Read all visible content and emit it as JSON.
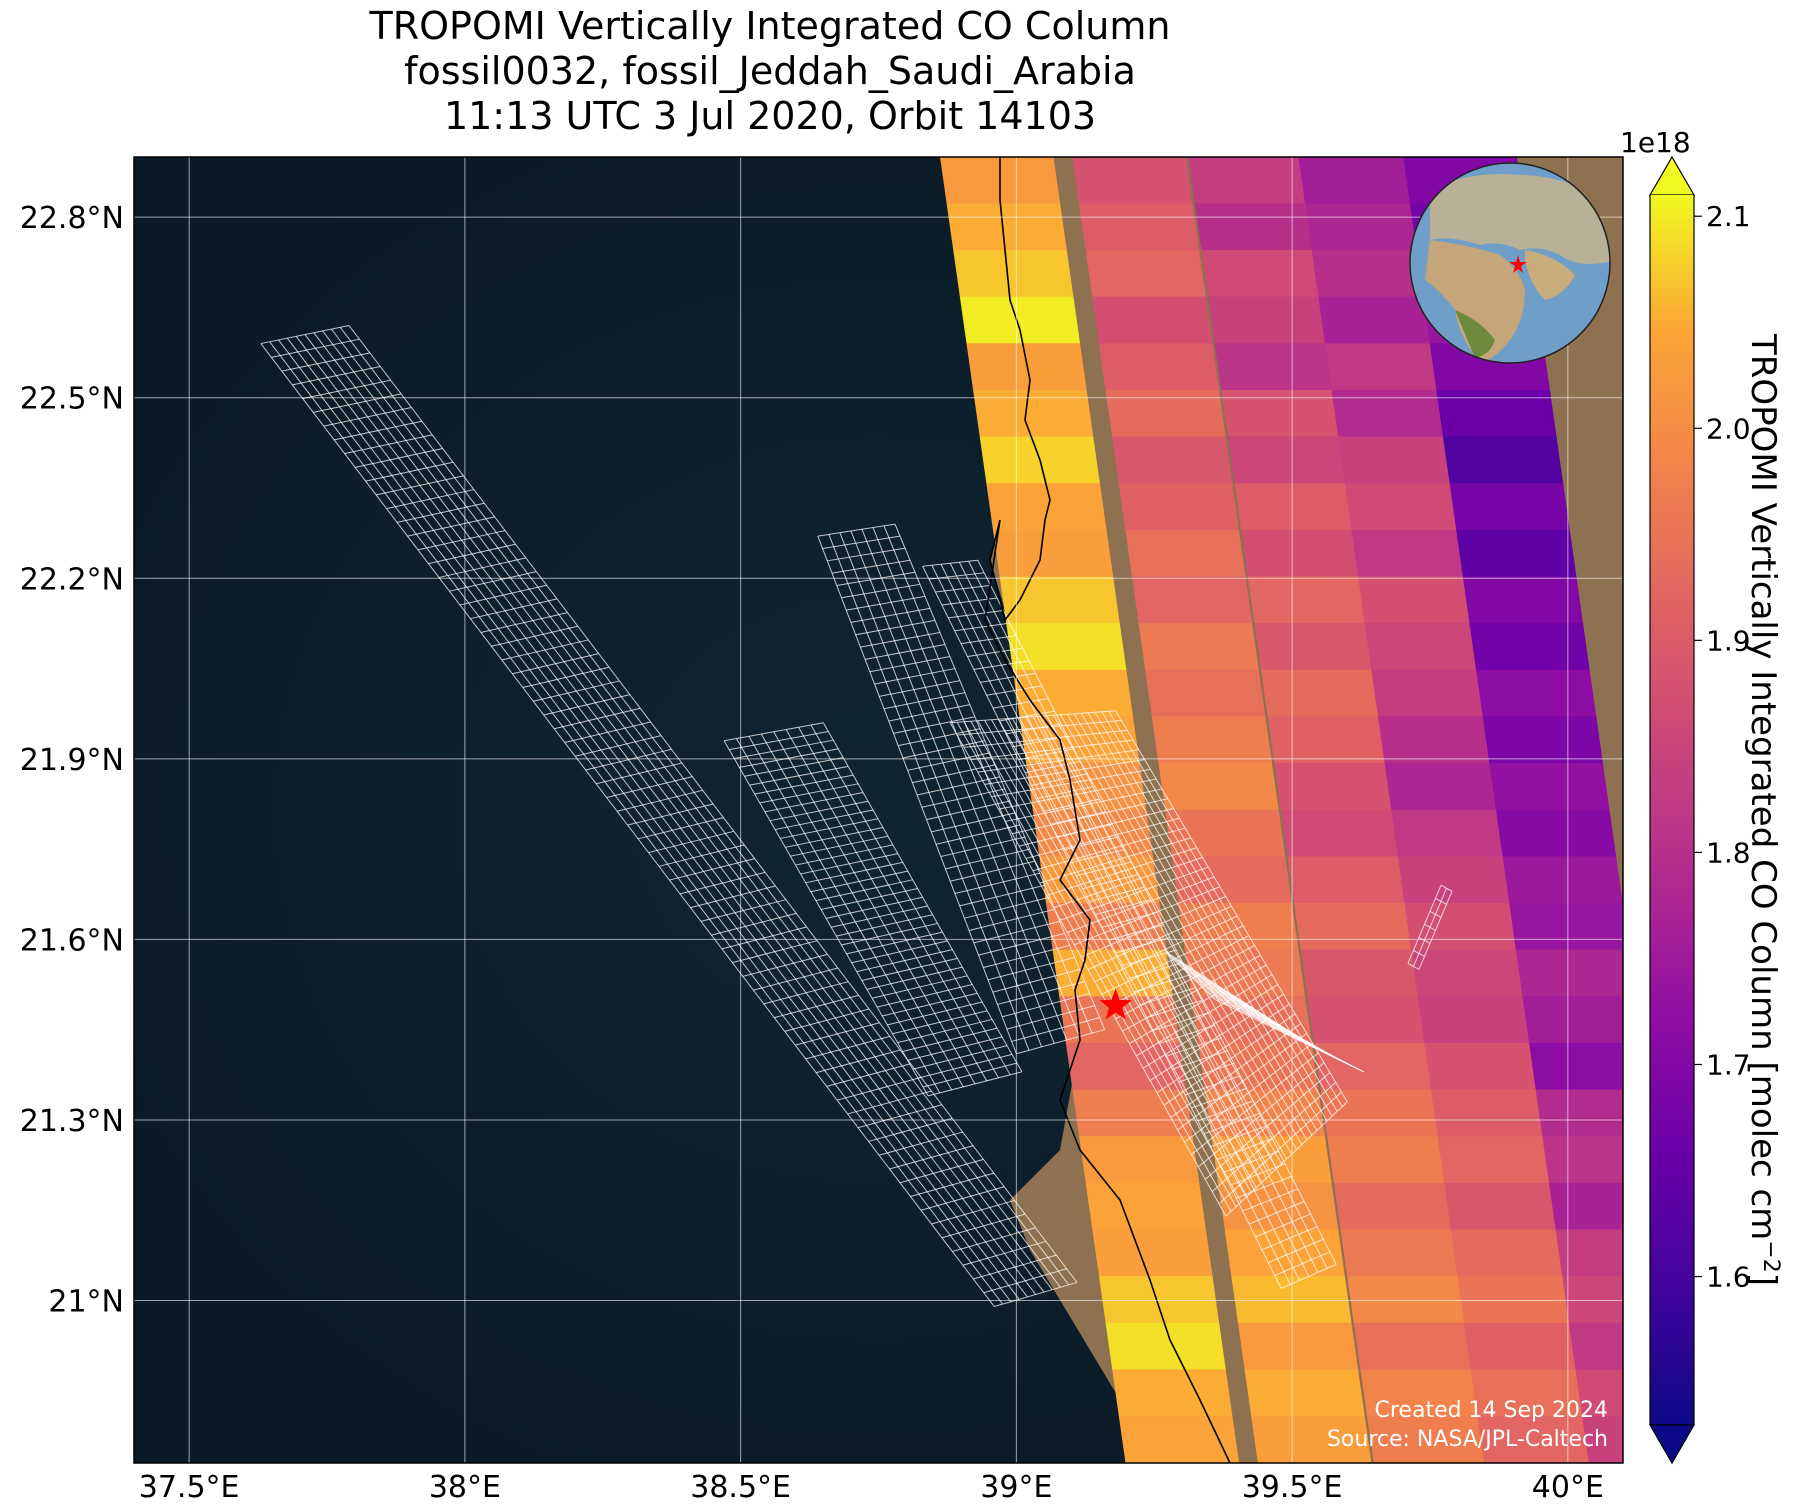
{
  "title": {
    "line1": "TROPOMI Vertically Integrated CO Column",
    "line2": "fossil0032, fossil_Jeddah_Saudi_Arabia",
    "line3": "11:13 UTC 3 Jul 2020, Orbit 14103"
  },
  "map": {
    "lon_range": [
      37.4,
      40.1
    ],
    "lat_range": [
      20.73,
      22.9
    ],
    "lon_ticks": [
      "37.5°E",
      "38°E",
      "38.5°E",
      "39°E",
      "39.5°E",
      "40°E"
    ],
    "lat_ticks": [
      "22.8°N",
      "22.5°N",
      "22.2°N",
      "21.9°N",
      "21.6°N",
      "21.3°N",
      "21°N"
    ],
    "target_site": {
      "lon": 39.18,
      "lat": 21.49
    },
    "credit_line1": "Created 14 Sep 2024",
    "credit_line2": "Source: NASA/JPL-Caltech"
  },
  "colorbar": {
    "label": "TROPOMI Vertically Integrated CO Column [molec cm",
    "label_exponent": "−2",
    "label_close": "]",
    "multiplier": "1e18",
    "ticks": [
      "1.6",
      "1.7",
      "1.8",
      "1.9",
      "2.0",
      "2.1"
    ],
    "vmin": 1.53,
    "vmax": 2.11,
    "colormap": "plasma",
    "extend": "both"
  },
  "chart_data": {
    "type": "heatmap",
    "title": "TROPOMI Vertically Integrated CO Column",
    "subtitle": "fossil0032, fossil_Jeddah_Saudi_Arabia; 11:13 UTC 3 Jul 2020, Orbit 14103",
    "units": "molec cm^-2 (x1e18)",
    "value_range": [
      1.53,
      2.11
    ],
    "swath_columns_lon_at_22_8N": [
      38.98,
      39.22,
      39.43,
      39.63,
      39.82
    ],
    "swath_column_values_north_to_south": [
      [
        2.02,
        2.05,
        2.07,
        2.1,
        2.03,
        2.05,
        2.08,
        2.04,
        2.03,
        2.07,
        2.09,
        2.05,
        2.04,
        2.01,
        1.99,
        2.02,
        1.97,
        2.05,
        1.95,
        1.92,
        1.97,
        2.02,
        2.04,
        2.03,
        2.07,
        2.09,
        2.05,
        2.04
      ],
      [
        1.88,
        1.9,
        1.92,
        1.87,
        1.9,
        1.93,
        1.89,
        1.91,
        1.94,
        1.92,
        1.96,
        1.94,
        1.97,
        1.99,
        1.95,
        1.93,
        1.97,
        1.96,
        1.94,
        1.95,
        1.98,
        2.03,
        2.01,
        2.04,
        2.06,
        2.02,
        2.05,
        2.03
      ],
      [
        1.83,
        1.8,
        1.86,
        1.84,
        1.81,
        1.88,
        1.85,
        1.9,
        1.87,
        1.92,
        1.89,
        1.93,
        1.91,
        1.88,
        1.86,
        1.9,
        1.93,
        1.89,
        1.88,
        1.92,
        1.95,
        1.97,
        1.93,
        1.96,
        1.99,
        1.94,
        1.98,
        1.97
      ],
      [
        1.76,
        1.78,
        1.8,
        1.77,
        1.82,
        1.79,
        1.84,
        1.86,
        1.82,
        1.87,
        1.85,
        1.83,
        1.8,
        1.78,
        1.82,
        1.84,
        1.87,
        1.85,
        1.84,
        1.88,
        1.9,
        1.92,
        1.89,
        1.93,
        1.95,
        1.91,
        1.94,
        1.92
      ],
      [
        1.7,
        1.68,
        1.72,
        1.74,
        1.7,
        1.66,
        1.62,
        1.68,
        1.64,
        1.7,
        1.67,
        1.72,
        1.69,
        1.73,
        1.71,
        1.75,
        1.74,
        1.78,
        1.76,
        1.72,
        1.79,
        1.81,
        1.77,
        1.83,
        1.85,
        1.82,
        1.86,
        1.84
      ]
    ]
  }
}
